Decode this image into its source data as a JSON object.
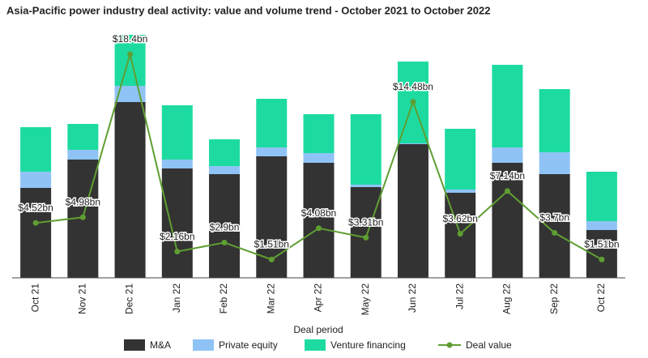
{
  "chart_data": {
    "type": "bar-line",
    "title": "Asia-Pacific power industry deal activity: value and volume trend - October 2021 to October 2022",
    "xlabel": "Deal period",
    "categories": [
      "Oct 21",
      "Nov 21",
      "Dec 21",
      "Jan 22",
      "Feb 22",
      "Mar 22",
      "Apr 22",
      "May 22",
      "Jun 22",
      "Jul 22",
      "Aug 22",
      "Sep 22",
      "Oct 22"
    ],
    "ylim": [
      0,
      30
    ],
    "y2lim": [
      0,
      20
    ],
    "series": [
      {
        "name": "M&A",
        "color": "#333333",
        "values": [
          11.1,
          14.6,
          21.7,
          13.5,
          12.8,
          15,
          14.2,
          11.2,
          16.5,
          10.5,
          14.2,
          12.8,
          5.9
        ]
      },
      {
        "name": "Private equity",
        "color": "#8fc3f5",
        "values": [
          2,
          1.2,
          2,
          1.1,
          1,
          1.1,
          1.2,
          0.3,
          0.1,
          0.4,
          1.9,
          2.7,
          1.1
        ]
      },
      {
        "name": "Venture financing",
        "color": "#1ddba0",
        "values": [
          5.5,
          3.2,
          6.3,
          6.7,
          3.3,
          6,
          4.8,
          8.7,
          10.1,
          7.5,
          10.2,
          7.8,
          6.1
        ]
      },
      {
        "name": "Deal value",
        "color": "#5f9e32",
        "axis": "y2",
        "values": [
          4.52,
          4.98,
          18.4,
          2.16,
          2.9,
          1.51,
          4.08,
          3.31,
          14.48,
          3.62,
          7.14,
          3.7,
          1.51
        ],
        "value_labels": [
          "$4.52bn",
          "$4.98bn",
          "$18.4bn",
          "$2.16bn",
          "$2.9bn",
          "$1.51bn",
          "$4.08bn",
          "$3.31bn",
          "$14.48bn",
          "$3.62bn",
          "$7.14bn",
          "$3.7bn",
          "$1.51bn"
        ]
      }
    ]
  }
}
